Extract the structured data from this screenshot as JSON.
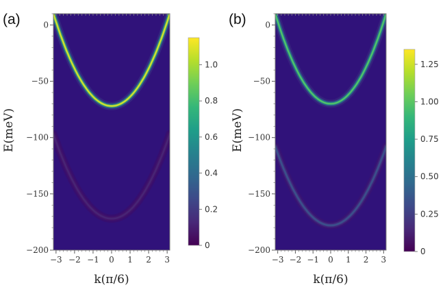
{
  "chart_data": [
    {
      "type": "heatmap",
      "panel_label": "(a)",
      "xlabel": "k(π/6)",
      "ylabel": "E(meV)",
      "xlim": [
        -3.14159,
        3.14159
      ],
      "ylim": [
        -200,
        10
      ],
      "xticks": [
        "−3",
        "−2",
        "−1",
        "0",
        "1",
        "2",
        "3"
      ],
      "xtick_values": [
        -3,
        -2,
        -1,
        0,
        1,
        2,
        3
      ],
      "yticks": [
        "0",
        "−50",
        "−100",
        "−150",
        "−200"
      ],
      "ytick_values": [
        0,
        -50,
        -100,
        -150,
        -200
      ],
      "bands": [
        {
          "name": "upper band",
          "minimum_meV": -72,
          "edge_meV": 10,
          "peak_intensity": 1.1
        },
        {
          "name": "lower band",
          "minimum_meV": -172,
          "edge_meV": -97,
          "peak_intensity": 0.12
        }
      ],
      "colorbar": {
        "min": 0,
        "max": 1.15,
        "ticks": [
          "0",
          "0.2",
          "0.4",
          "0.6",
          "0.8",
          "1.0"
        ],
        "tick_values": [
          0,
          0.2,
          0.4,
          0.6,
          0.8,
          1.0
        ]
      }
    },
    {
      "type": "heatmap",
      "panel_label": "(b)",
      "xlabel": "k(π/6)",
      "ylabel": "E(meV)",
      "xlim": [
        -3.14159,
        3.14159
      ],
      "ylim": [
        -200,
        10
      ],
      "xticks": [
        "−3",
        "−2",
        "−1",
        "0",
        "1",
        "2",
        "3"
      ],
      "xtick_values": [
        -3,
        -2,
        -1,
        0,
        1,
        2,
        3
      ],
      "yticks": [
        "0",
        "−50",
        "−100",
        "−150",
        "−200"
      ],
      "ytick_values": [
        0,
        -50,
        -100,
        -150,
        -200
      ],
      "bands": [
        {
          "name": "upper band",
          "minimum_meV": -70,
          "edge_meV": 10,
          "peak_intensity": 1.0
        },
        {
          "name": "lower band",
          "minimum_meV": -178,
          "edge_meV": -108,
          "peak_intensity": 0.35
        }
      ],
      "colorbar": {
        "min": 0,
        "max": 1.35,
        "ticks": [
          "0",
          "0.25",
          "0.50",
          "0.75",
          "1.00",
          "1.25"
        ],
        "tick_values": [
          0,
          0.25,
          0.5,
          0.75,
          1.0,
          1.25
        ]
      }
    }
  ],
  "colors": {
    "viridis": [
      "#440154",
      "#482878",
      "#3e4989",
      "#31688e",
      "#26828e",
      "#1f9e89",
      "#35b779",
      "#6ece58",
      "#b5de2b",
      "#fde725"
    ],
    "background": "#30127a",
    "frame": "#777777"
  }
}
